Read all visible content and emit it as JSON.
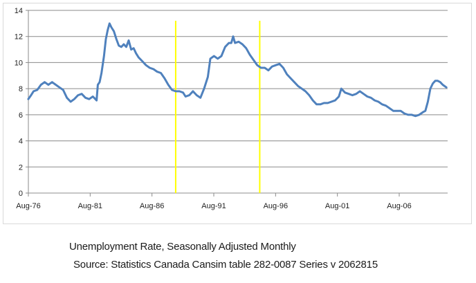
{
  "chart_data": {
    "type": "line",
    "title": "",
    "xlabel": "",
    "ylabel": "",
    "ylim": [
      0,
      14
    ],
    "yticks": [
      0,
      2,
      4,
      6,
      8,
      10,
      12,
      14
    ],
    "xlim": [
      1976.583,
      2010.5
    ],
    "xticks": [
      {
        "label": "Aug-76",
        "x": 1976.583
      },
      {
        "label": "Aug-81",
        "x": 1981.583
      },
      {
        "label": "Aug-86",
        "x": 1986.583
      },
      {
        "label": "Aug-91",
        "x": 1991.583
      },
      {
        "label": "Aug-96",
        "x": 1996.583
      },
      {
        "label": "Aug-01",
        "x": 2001.583
      },
      {
        "label": "Aug-06",
        "x": 2006.583
      }
    ],
    "grid": "horizontal",
    "legend": "none",
    "line_color": "#4f81bd",
    "marker_color": "#ffff00",
    "markers": [
      1988.5,
      1995.3
    ],
    "series": [
      {
        "points": [
          [
            1976.58,
            7.2
          ],
          [
            1976.8,
            7.5
          ],
          [
            1977.0,
            7.8
          ],
          [
            1977.3,
            7.9
          ],
          [
            1977.6,
            8.3
          ],
          [
            1977.9,
            8.5
          ],
          [
            1978.2,
            8.3
          ],
          [
            1978.5,
            8.5
          ],
          [
            1978.8,
            8.3
          ],
          [
            1979.1,
            8.1
          ],
          [
            1979.4,
            7.9
          ],
          [
            1979.7,
            7.3
          ],
          [
            1980.0,
            7.0
          ],
          [
            1980.3,
            7.2
          ],
          [
            1980.6,
            7.5
          ],
          [
            1980.9,
            7.6
          ],
          [
            1981.2,
            7.3
          ],
          [
            1981.5,
            7.2
          ],
          [
            1981.8,
            7.4
          ],
          [
            1982.0,
            7.2
          ],
          [
            1982.1,
            7.1
          ],
          [
            1982.2,
            8.3
          ],
          [
            1982.35,
            8.5
          ],
          [
            1982.5,
            9.2
          ],
          [
            1982.7,
            10.5
          ],
          [
            1982.85,
            11.8
          ],
          [
            1983.0,
            12.5
          ],
          [
            1983.15,
            13.0
          ],
          [
            1983.3,
            12.7
          ],
          [
            1983.5,
            12.4
          ],
          [
            1983.7,
            11.8
          ],
          [
            1983.9,
            11.3
          ],
          [
            1984.1,
            11.2
          ],
          [
            1984.3,
            11.4
          ],
          [
            1984.5,
            11.2
          ],
          [
            1984.7,
            11.7
          ],
          [
            1984.9,
            11.0
          ],
          [
            1985.1,
            11.1
          ],
          [
            1985.3,
            10.7
          ],
          [
            1985.5,
            10.4
          ],
          [
            1985.8,
            10.1
          ],
          [
            1986.1,
            9.8
          ],
          [
            1986.4,
            9.6
          ],
          [
            1986.7,
            9.5
          ],
          [
            1987.0,
            9.3
          ],
          [
            1987.3,
            9.2
          ],
          [
            1987.6,
            8.8
          ],
          [
            1987.9,
            8.3
          ],
          [
            1988.2,
            7.9
          ],
          [
            1988.5,
            7.8
          ],
          [
            1988.8,
            7.8
          ],
          [
            1989.1,
            7.7
          ],
          [
            1989.3,
            7.4
          ],
          [
            1989.6,
            7.5
          ],
          [
            1989.9,
            7.8
          ],
          [
            1990.2,
            7.5
          ],
          [
            1990.5,
            7.3
          ],
          [
            1990.8,
            8.0
          ],
          [
            1991.1,
            8.9
          ],
          [
            1991.3,
            10.3
          ],
          [
            1991.6,
            10.5
          ],
          [
            1991.9,
            10.3
          ],
          [
            1992.2,
            10.5
          ],
          [
            1992.5,
            11.2
          ],
          [
            1992.8,
            11.5
          ],
          [
            1993.0,
            11.5
          ],
          [
            1993.15,
            12.0
          ],
          [
            1993.3,
            11.5
          ],
          [
            1993.6,
            11.6
          ],
          [
            1993.9,
            11.4
          ],
          [
            1994.2,
            11.1
          ],
          [
            1994.5,
            10.6
          ],
          [
            1994.8,
            10.2
          ],
          [
            1995.1,
            9.8
          ],
          [
            1995.4,
            9.6
          ],
          [
            1995.7,
            9.6
          ],
          [
            1996.0,
            9.4
          ],
          [
            1996.3,
            9.7
          ],
          [
            1996.6,
            9.8
          ],
          [
            1996.9,
            9.9
          ],
          [
            1997.2,
            9.6
          ],
          [
            1997.5,
            9.1
          ],
          [
            1997.8,
            8.8
          ],
          [
            1998.1,
            8.5
          ],
          [
            1998.4,
            8.2
          ],
          [
            1998.7,
            8.0
          ],
          [
            1999.0,
            7.8
          ],
          [
            1999.3,
            7.5
          ],
          [
            1999.6,
            7.1
          ],
          [
            1999.9,
            6.8
          ],
          [
            2000.2,
            6.8
          ],
          [
            2000.5,
            6.9
          ],
          [
            2000.8,
            6.9
          ],
          [
            2001.1,
            7.0
          ],
          [
            2001.4,
            7.1
          ],
          [
            2001.7,
            7.4
          ],
          [
            2001.9,
            8.0
          ],
          [
            2002.2,
            7.7
          ],
          [
            2002.5,
            7.6
          ],
          [
            2002.8,
            7.5
          ],
          [
            2003.1,
            7.6
          ],
          [
            2003.4,
            7.8
          ],
          [
            2003.7,
            7.6
          ],
          [
            2004.0,
            7.4
          ],
          [
            2004.3,
            7.3
          ],
          [
            2004.6,
            7.1
          ],
          [
            2004.9,
            7.0
          ],
          [
            2005.2,
            6.8
          ],
          [
            2005.5,
            6.7
          ],
          [
            2005.8,
            6.5
          ],
          [
            2006.1,
            6.3
          ],
          [
            2006.4,
            6.3
          ],
          [
            2006.7,
            6.3
          ],
          [
            2007.0,
            6.1
          ],
          [
            2007.3,
            6.0
          ],
          [
            2007.6,
            6.0
          ],
          [
            2007.9,
            5.9
          ],
          [
            2008.2,
            6.0
          ],
          [
            2008.5,
            6.2
          ],
          [
            2008.7,
            6.3
          ],
          [
            2008.9,
            7.0
          ],
          [
            2009.1,
            8.0
          ],
          [
            2009.3,
            8.4
          ],
          [
            2009.5,
            8.6
          ],
          [
            2009.7,
            8.6
          ],
          [
            2009.9,
            8.5
          ],
          [
            2010.1,
            8.3
          ],
          [
            2010.4,
            8.1
          ]
        ]
      }
    ]
  },
  "caption": {
    "title": "Unemployment Rate, Seasonally Adjusted Monthly",
    "source": "Source: Statistics Canada Cansim table 282-0087 Series v 2062815"
  }
}
